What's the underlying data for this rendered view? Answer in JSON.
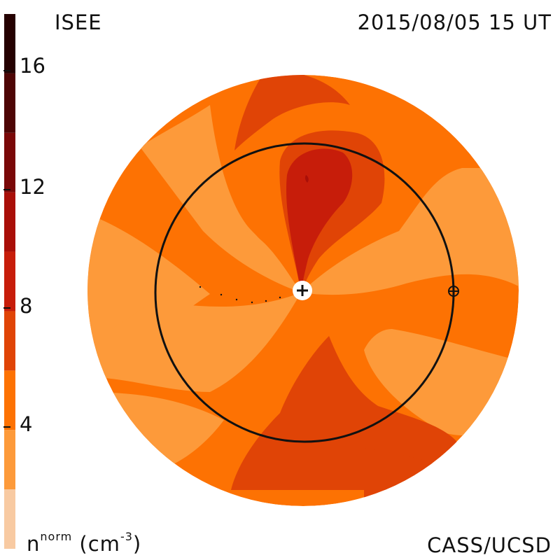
{
  "header": {
    "observatory": "ISEE",
    "datetime": "2015/08/05 15 UT"
  },
  "footer": {
    "credit": "CASS/UCSD",
    "unit_base": "n",
    "unit_sup": "norm",
    "unit_rest": " (cm",
    "unit_exp": "-3",
    "unit_close": ")"
  },
  "colorbar": {
    "min": 0,
    "max": 18,
    "tick_labels": [
      "4",
      "8",
      "12",
      "16"
    ],
    "tick_values": [
      4,
      8,
      12,
      16
    ],
    "bands": [
      {
        "from": 0,
        "to": 2,
        "color": "#f8caa2"
      },
      {
        "from": 2,
        "to": 4,
        "color": "#fd9a3a"
      },
      {
        "from": 4,
        "to": 6,
        "color": "#fd7203"
      },
      {
        "from": 6,
        "to": 8,
        "color": "#e04406"
      },
      {
        "from": 8,
        "to": 10,
        "color": "#c71d0a"
      },
      {
        "from": 10,
        "to": 12,
        "color": "#a90f08"
      },
      {
        "from": 12,
        "to": 14,
        "color": "#7a0808"
      },
      {
        "from": 14,
        "to": 16,
        "color": "#4e0505"
      },
      {
        "from": 16,
        "to": 18,
        "color": "#250101"
      }
    ]
  },
  "map_colors": {
    "light": "#fd9a3a",
    "mid": "#fd7203",
    "dark": "#e04406",
    "deep": "#c71d0a",
    "deeper": "#a90f08",
    "outline": "#111111",
    "sun_bg": "#ffffff"
  },
  "icons": {
    "sun": "plus-in-circle",
    "earth": "circled-plus"
  }
}
